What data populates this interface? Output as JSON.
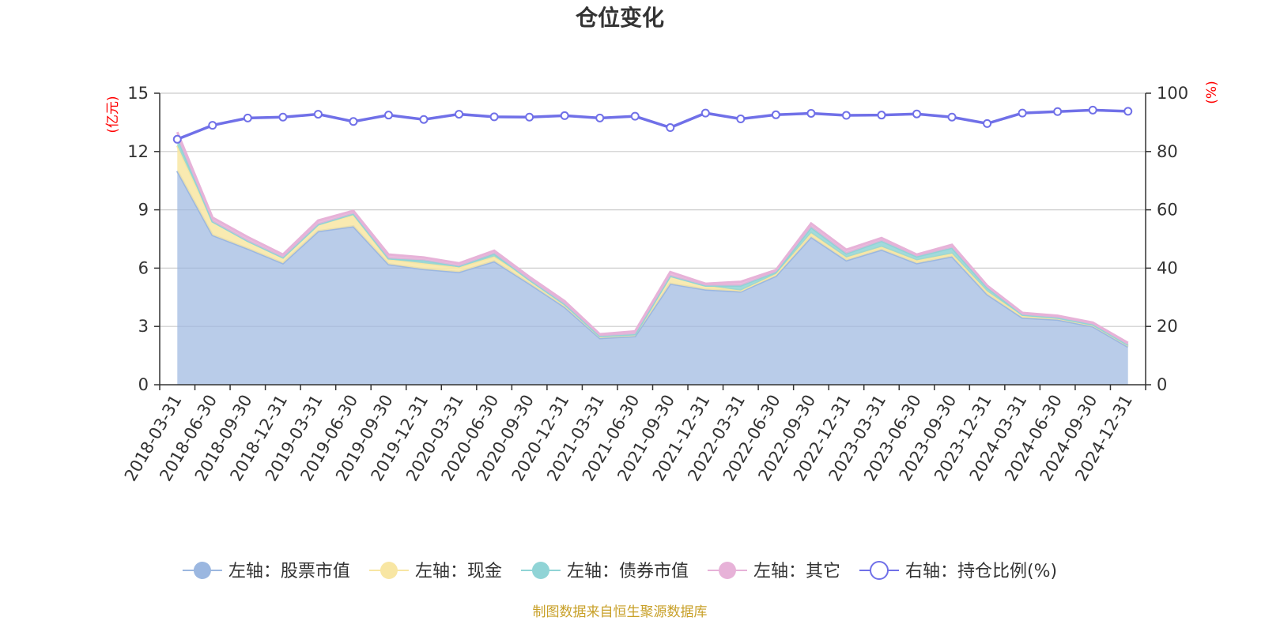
{
  "chart_data": {
    "type": "area",
    "title": "仓位变化",
    "left_axis_unit": "(亿元)",
    "right_axis_unit": "(%)",
    "left_ylim": [
      0,
      15
    ],
    "left_yticks": [
      0,
      3,
      6,
      9,
      12,
      15
    ],
    "right_ylim": [
      0,
      100
    ],
    "right_yticks": [
      0,
      20,
      40,
      60,
      80,
      100
    ],
    "grid": true,
    "legend_position": "bottom",
    "x": [
      "2018-03-31",
      "2018-06-30",
      "2018-09-30",
      "2018-12-31",
      "2019-03-31",
      "2019-06-30",
      "2019-09-30",
      "2019-12-31",
      "2020-03-31",
      "2020-06-30",
      "2020-09-30",
      "2020-12-31",
      "2021-03-31",
      "2021-06-30",
      "2021-09-30",
      "2021-12-31",
      "2022-03-31",
      "2022-06-30",
      "2022-09-30",
      "2022-12-31",
      "2023-03-31",
      "2023-06-30",
      "2023-09-30",
      "2023-12-31",
      "2024-03-31",
      "2024-06-30",
      "2024-09-30",
      "2024-12-31"
    ],
    "series": [
      {
        "name": "左轴：股票市值",
        "axis": "left",
        "stacked": true,
        "color": "#9bb7e0",
        "values": [
          11.0,
          7.7,
          7.0,
          6.25,
          7.9,
          8.15,
          6.2,
          5.95,
          5.8,
          6.35,
          5.2,
          4.0,
          2.4,
          2.5,
          5.2,
          4.9,
          4.8,
          5.6,
          7.6,
          6.4,
          6.95,
          6.25,
          6.6,
          4.65,
          3.45,
          3.35,
          3.0,
          1.95
        ]
      },
      {
        "name": "左轴：现金",
        "axis": "left",
        "stacked": true,
        "color": "#f8e6a3",
        "values": [
          1.3,
          0.7,
          0.4,
          0.3,
          0.35,
          0.6,
          0.25,
          0.3,
          0.25,
          0.25,
          0.2,
          0.15,
          0.1,
          0.1,
          0.4,
          0.2,
          0.05,
          0.1,
          0.2,
          0.15,
          0.15,
          0.15,
          0.15,
          0.15,
          0.1,
          0.1,
          0.1,
          0.1
        ]
      },
      {
        "name": "左轴：债券市值",
        "axis": "left",
        "stacked": true,
        "color": "#90d4d6",
        "values": [
          0.4,
          0.0,
          0.0,
          0.0,
          0.0,
          0.05,
          0.05,
          0.15,
          0.05,
          0.15,
          0.0,
          0.0,
          0.0,
          0.0,
          0.0,
          0.0,
          0.25,
          0.1,
          0.3,
          0.2,
          0.3,
          0.2,
          0.3,
          0.2,
          0.05,
          0.0,
          0.0,
          0.0
        ]
      },
      {
        "name": "左轴：其它",
        "axis": "left",
        "stacked": true,
        "color": "#e7b2d8",
        "values": [
          0.3,
          0.2,
          0.2,
          0.15,
          0.2,
          0.15,
          0.2,
          0.15,
          0.15,
          0.15,
          0.15,
          0.15,
          0.1,
          0.15,
          0.2,
          0.1,
          0.2,
          0.1,
          0.2,
          0.2,
          0.15,
          0.1,
          0.15,
          0.1,
          0.1,
          0.1,
          0.1,
          0.1
        ]
      },
      {
        "name": "右轴：持仓比例(%)",
        "axis": "right",
        "type": "line",
        "color": "#7070e8",
        "values": [
          84.2,
          89.0,
          91.5,
          91.8,
          92.8,
          90.3,
          92.5,
          91.0,
          92.8,
          91.9,
          91.8,
          92.3,
          91.5,
          92.1,
          88.2,
          93.2,
          91.2,
          92.6,
          93.1,
          92.4,
          92.5,
          92.9,
          91.8,
          89.6,
          93.2,
          93.7,
          94.2,
          93.8
        ]
      }
    ]
  },
  "footer": {
    "source": "制图数据来自恒生聚源数据库"
  }
}
